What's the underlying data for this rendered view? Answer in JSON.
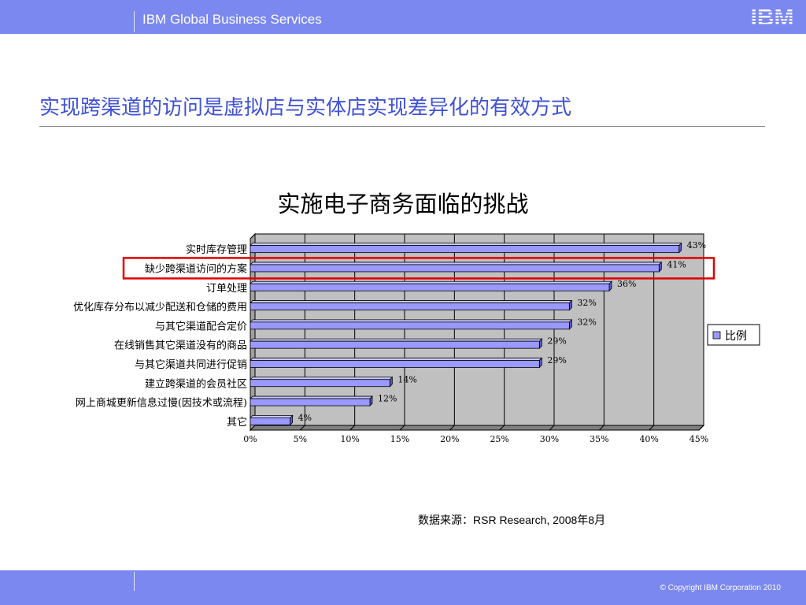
{
  "header": {
    "brand": "IBM Global Business Services",
    "logo_text": "IBM",
    "background": "#7b88f0"
  },
  "slide": {
    "title": "实现跨渠道的访问是虚拟店与实体店实现差异化的有效方式",
    "title_color": "#3f52d6"
  },
  "chart_data": {
    "type": "bar",
    "orientation": "horizontal",
    "title": "实施电子商务面临的挑战",
    "categories": [
      "实时库存管理",
      "缺少跨渠道访问的方案",
      "订单处理",
      "优化库存分布以减少配送和仓储的费用",
      "与其它渠道配合定价",
      "在线销售其它渠道没有的商品",
      "与其它渠道共同进行促销",
      "建立跨渠道的会员社区",
      "网上商城更新信息过慢(因技术或流程)",
      "其它"
    ],
    "series": [
      {
        "name": "比例",
        "values": [
          43,
          41,
          36,
          32,
          32,
          29,
          29,
          14,
          12,
          4
        ],
        "labels": [
          "43%",
          "41%",
          "36%",
          "32%",
          "32%",
          "29%",
          "29%",
          "14%",
          "12%",
          "4%"
        ]
      }
    ],
    "xlim": [
      0,
      45
    ],
    "xticks": [
      "0%",
      "5%",
      "10%",
      "15%",
      "20%",
      "25%",
      "30%",
      "35%",
      "40%",
      "45%"
    ],
    "grid": true,
    "legend": "right",
    "highlighted_category": "缺少跨渠道访问的方案",
    "bar_color": "#9999ff",
    "highlight_color": "#e00000",
    "plot_background": "#c0c0c0"
  },
  "source": "数据来源：RSR Research, 2008年8月",
  "footer": {
    "copyright": "© Copyright IBM Corporation 2010"
  }
}
